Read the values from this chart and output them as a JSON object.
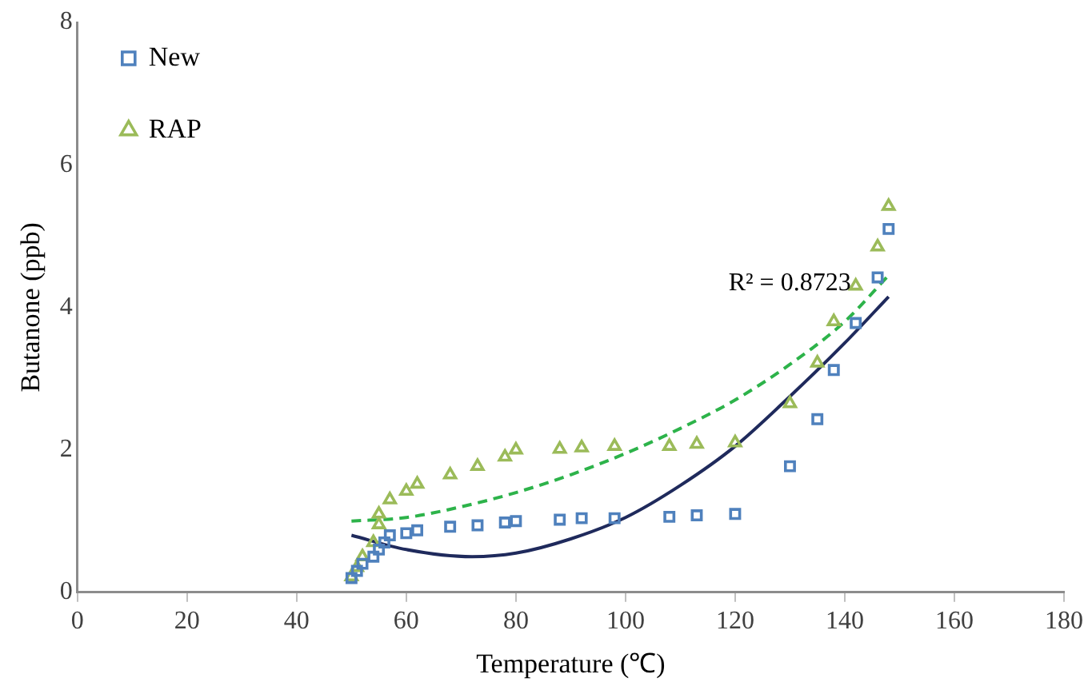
{
  "chart_data": {
    "type": "scatter",
    "xlabel": "Temperature (℃)",
    "ylabel": "Butanone (ppb)",
    "xlim": [
      0,
      180
    ],
    "xticks": [
      0,
      20,
      40,
      60,
      80,
      100,
      120,
      140,
      160,
      180
    ],
    "ylim": [
      0,
      8
    ],
    "yticks": [
      0,
      2,
      4,
      6,
      8
    ],
    "grid": false,
    "legend": "top left",
    "annotations": [
      "R² = 0.8723"
    ],
    "series": [
      {
        "name": "New",
        "type": "scatter",
        "marker": "square",
        "color": "#4f81bd",
        "x": [
          50,
          51,
          52,
          54,
          55,
          56,
          57,
          60,
          62,
          68,
          73,
          78,
          80,
          88,
          92,
          98,
          108,
          113,
          120,
          130,
          135,
          138,
          142,
          146,
          148
        ],
        "values": [
          0.2,
          0.3,
          0.4,
          0.5,
          0.6,
          0.7,
          0.8,
          0.83,
          0.87,
          0.92,
          0.94,
          0.98,
          1.0,
          1.02,
          1.04,
          1.04,
          1.06,
          1.08,
          1.1,
          1.77,
          2.43,
          3.12,
          3.78,
          4.42,
          5.1
        ]
      },
      {
        "name": "RAP",
        "type": "scatter",
        "marker": "triangle",
        "color": "#9bbb59",
        "x": [
          50,
          51,
          52,
          54,
          55,
          55,
          57,
          60,
          62,
          68,
          73,
          78,
          80,
          88,
          92,
          98,
          108,
          113,
          120,
          130,
          135,
          138,
          142,
          146,
          148
        ],
        "values": [
          0.22,
          0.35,
          0.5,
          0.7,
          0.95,
          1.1,
          1.3,
          1.42,
          1.52,
          1.65,
          1.77,
          1.9,
          2.0,
          2.01,
          2.03,
          2.05,
          2.05,
          2.08,
          2.1,
          2.65,
          3.22,
          3.8,
          4.3,
          4.85,
          5.42
        ]
      },
      {
        "type": "line",
        "line_style": "solid",
        "marker": "none",
        "color": "#1f2a5c",
        "x": [
          50,
          60,
          72,
          80,
          90,
          100,
          110,
          120,
          130,
          140,
          148
        ],
        "values": [
          0.8,
          0.6,
          0.5,
          0.55,
          0.75,
          1.05,
          1.5,
          2.05,
          2.75,
          3.5,
          4.15
        ]
      },
      {
        "type": "line",
        "line_style": "dashed",
        "marker": "none",
        "color": "#2db34a",
        "x": [
          50,
          60,
          70,
          80,
          90,
          100,
          110,
          120,
          130,
          140,
          148
        ],
        "values": [
          1.0,
          1.05,
          1.2,
          1.4,
          1.65,
          1.95,
          2.3,
          2.7,
          3.2,
          3.8,
          4.45
        ]
      }
    ]
  }
}
